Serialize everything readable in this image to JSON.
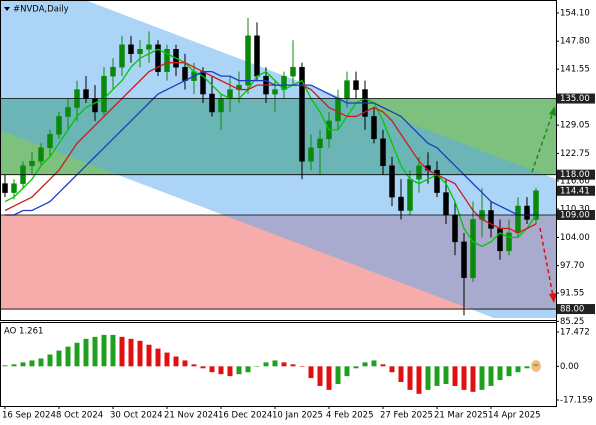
{
  "chart_data": [
    {
      "type": "candlestick",
      "title": "#NVDA,Daily",
      "categories": [
        "16 Sep 2024",
        null,
        null,
        null,
        null,
        null,
        "8 Oct 2024",
        null,
        null,
        null,
        null,
        null,
        "30 Oct 2024",
        null,
        null,
        null,
        null,
        null,
        "21 Nov 2024",
        null,
        null,
        null,
        null,
        null,
        "16 Dec 2024",
        null,
        null,
        null,
        null,
        null,
        "10 Jan 2025",
        null,
        null,
        null,
        null,
        null,
        "4 Feb 2025",
        null,
        null,
        null,
        null,
        null,
        "27 Feb 2025",
        null,
        null,
        null,
        null,
        null,
        "21 Mar 2025",
        null,
        null,
        null,
        null,
        null,
        "14 Apr 2025",
        null,
        null,
        null,
        null,
        null
      ],
      "open": [
        116,
        114,
        116,
        120,
        121,
        124,
        127,
        131,
        133,
        137,
        135,
        132,
        140,
        142,
        147,
        145,
        146,
        147,
        141,
        146,
        142,
        139,
        141,
        136,
        132,
        135,
        137,
        138,
        149,
        140,
        136,
        137,
        140,
        142,
        121,
        124,
        126,
        130,
        135,
        139,
        137,
        131,
        126,
        120,
        113,
        110,
        117,
        120,
        119,
        114,
        109,
        103,
        95,
        108,
        110,
        106,
        101,
        105,
        111,
        108
      ],
      "high": [
        118,
        117,
        121,
        123,
        125,
        128,
        132,
        135,
        139,
        140,
        138,
        142,
        144,
        149,
        149,
        148,
        150,
        148,
        147,
        147,
        145,
        143,
        142,
        140,
        136,
        140,
        141,
        153,
        152,
        142,
        139,
        141,
        148,
        143,
        127,
        128,
        132,
        137,
        141,
        141,
        139,
        133,
        128,
        122,
        117,
        119,
        122,
        123,
        121,
        117,
        112,
        105,
        112,
        115,
        112,
        108,
        108,
        113,
        113,
        115
      ],
      "low": [
        113,
        112.5,
        115,
        118,
        120,
        122,
        126,
        128,
        130,
        134,
        130,
        131,
        137,
        140,
        143,
        142,
        143,
        140,
        139,
        140,
        137,
        136,
        134,
        131,
        128,
        132,
        134,
        136,
        139,
        134,
        132,
        135,
        138,
        117,
        119,
        118,
        124,
        128,
        133,
        135,
        128,
        125,
        118,
        111,
        108,
        109,
        114,
        116,
        113,
        107,
        100,
        86.6,
        94,
        104,
        104,
        99,
        100,
        104,
        107,
        107
      ],
      "close": [
        114,
        116,
        120,
        121,
        124,
        127,
        131,
        133,
        137,
        135,
        132,
        140,
        142,
        147,
        145,
        146,
        147,
        141,
        146,
        142,
        139,
        141,
        136,
        132,
        135,
        137,
        138,
        149,
        140,
        136,
        137,
        140,
        142,
        121,
        124,
        126,
        130,
        135,
        139,
        137,
        131,
        126,
        120,
        113,
        110,
        117,
        120,
        119,
        114,
        109,
        103,
        95,
        108,
        110,
        106,
        101,
        105,
        111,
        108,
        114.41
      ],
      "series": [
        {
          "color": "#00c800",
          "values": [
            112,
            113,
            115,
            117,
            120,
            122,
            125,
            128,
            131,
            133,
            134,
            135,
            137,
            139,
            142,
            144,
            145,
            146,
            145,
            144,
            143,
            141,
            140,
            138,
            136,
            135,
            135,
            137,
            140,
            141,
            139,
            137,
            138,
            139,
            135,
            132,
            128,
            128,
            131,
            134,
            135,
            134,
            130,
            125,
            120,
            117,
            116,
            117,
            118,
            116,
            112,
            106,
            103,
            102,
            103,
            105,
            104,
            104,
            106,
            109
          ]
        },
        {
          "color": "#c81e1e",
          "values": [
            110,
            111,
            112,
            113,
            115,
            117,
            119,
            122,
            125,
            127,
            129,
            131,
            133,
            135,
            137,
            139,
            141,
            142,
            143,
            143,
            143,
            142,
            141,
            140,
            139,
            138,
            137,
            137,
            138,
            138,
            138,
            138,
            138,
            138,
            137,
            135,
            133,
            132,
            131,
            131,
            132,
            133,
            132,
            130,
            127,
            124,
            121,
            119,
            118,
            117,
            116,
            113,
            110,
            108,
            107,
            106,
            106,
            105,
            106,
            107
          ]
        },
        {
          "color": "#1e3cc8",
          "values": [
            109,
            109,
            110,
            110,
            111,
            112,
            114,
            116,
            118,
            120,
            122,
            124,
            126,
            128,
            130,
            132,
            134,
            136,
            137,
            138,
            139,
            140,
            141,
            141,
            140,
            140,
            139,
            139,
            139,
            139,
            138,
            138,
            138,
            138,
            138,
            137,
            136,
            135,
            134,
            134,
            134,
            134,
            133,
            132,
            131,
            129,
            127,
            125,
            124,
            122,
            120,
            118,
            116,
            114,
            112,
            111,
            110,
            109,
            109,
            109
          ]
        }
      ],
      "bull_color": "#0a8a0a",
      "bear_color": "#000000",
      "ylim": [
        86.0,
        157.0
      ],
      "yticks": [
        {
          "value": 154.1,
          "label": "154.10"
        },
        {
          "value": 147.8,
          "label": "147.80"
        },
        {
          "value": 141.55,
          "label": "141.55"
        },
        {
          "value": 129.05,
          "label": "129.05"
        },
        {
          "value": 122.75,
          "label": "122.75"
        },
        {
          "value": 116.6,
          "label": "116.60"
        },
        {
          "value": 110.3,
          "label": "110.30"
        },
        {
          "value": 104,
          "label": "104.00"
        },
        {
          "value": 97.7,
          "label": "97.70"
        },
        {
          "value": 91.55,
          "label": "91.55"
        },
        {
          "value": 85.25,
          "label": "85.25"
        }
      ],
      "levels": [
        {
          "value": 135,
          "label": "135.00"
        },
        {
          "value": 118,
          "label": "118.00"
        },
        {
          "value": 109,
          "label": "109.00"
        },
        {
          "value": 88,
          "label": "88.00"
        }
      ],
      "zone_colors": [
        "rgba(40,150,40,0.6)",
        "rgba(240,90,90,0.5)"
      ]
    },
    {
      "type": "bar",
      "title": "AO 1.261",
      "values": [
        0.5,
        1,
        2,
        3,
        4,
        6,
        8,
        10,
        12,
        14,
        15,
        16,
        16,
        15,
        14,
        13,
        11,
        9,
        7,
        5,
        3,
        1,
        -1,
        -3,
        -4,
        -5,
        -4,
        -3,
        0,
        2,
        3,
        2,
        1,
        0,
        -6,
        -10,
        -12,
        -9,
        -5,
        -1,
        2,
        3,
        1,
        -3,
        -8,
        -12,
        -14,
        -12,
        -10,
        -9,
        -10,
        -12,
        -13,
        -12,
        -10,
        -7,
        -5,
        -3,
        -1,
        1.261
      ],
      "up_color": "#1fa01f",
      "down_color": "#e01010",
      "ylim": [
        -19.7,
        21.55
      ],
      "yticks": [
        17.472,
        {
          "value": 0,
          "label": "0.00"
        },
        -17.159
      ]
    }
  ]
}
